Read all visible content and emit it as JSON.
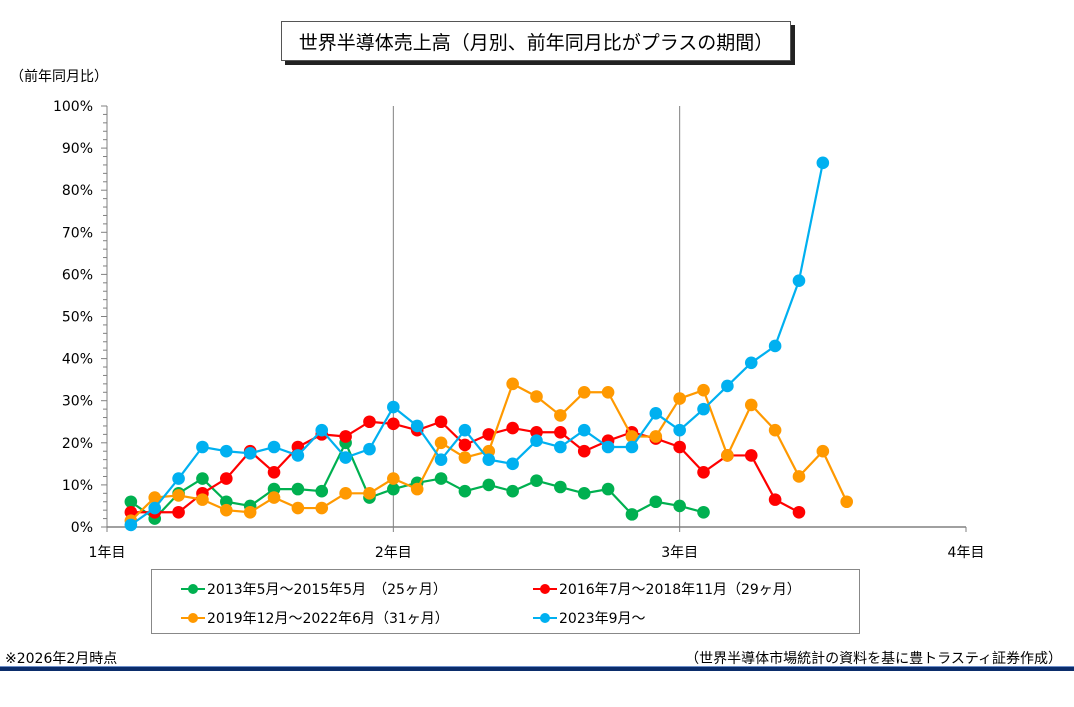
{
  "chart_data": {
    "type": "line",
    "title": "世界半導体売上高（月別、前年同月比がプラスの期間）",
    "ylabel": "（前年同月比）",
    "xlabel": "",
    "ylim": [
      0,
      100
    ],
    "y_ticks": [
      "0%",
      "10%",
      "20%",
      "30%",
      "40%",
      "50%",
      "60%",
      "70%",
      "80%",
      "90%",
      "100%"
    ],
    "x_ticks": [
      "1年目",
      "2年目",
      "3年目",
      "4年目"
    ],
    "x_unit": "months since start (12 months per year tick)",
    "xlim_months": [
      0,
      36
    ],
    "legend_position": "bottom",
    "series": [
      {
        "name": "2013年5月～2015年5月　（25ヶ月）",
        "color": "#00b050",
        "values": [
          6,
          2,
          8,
          11.5,
          6,
          5,
          9,
          9,
          8.5,
          20,
          7,
          9,
          10.5,
          11.5,
          8.5,
          10,
          8.5,
          11,
          9.5,
          8,
          9,
          3,
          6,
          5,
          3.5
        ]
      },
      {
        "name": "2016年7月～2018年11月（29ヶ月）",
        "color": "#ff0000",
        "values": [
          3.5,
          3.5,
          3.5,
          8,
          11.5,
          18,
          13,
          19,
          22,
          21.5,
          25,
          24.5,
          23,
          25,
          19.5,
          22,
          23.5,
          22.5,
          22.5,
          18,
          20.5,
          22.5,
          21,
          19,
          13,
          17,
          17,
          6.5,
          3.5
        ]
      },
      {
        "name": "2019年12月～2022年6月（31ヶ月）",
        "color": "#ff9900",
        "values": [
          1.5,
          7,
          7.5,
          6.5,
          4,
          3.5,
          7,
          4.5,
          4.5,
          8,
          8,
          11.5,
          9,
          20,
          16.5,
          18,
          34,
          31,
          26.5,
          32,
          32,
          21.5,
          21.5,
          30.5,
          32.5,
          17,
          29,
          23,
          12,
          18,
          6
        ]
      },
      {
        "name": "2023年9月～",
        "color": "#00b0f0",
        "values": [
          0.5,
          4.5,
          11.5,
          19,
          18,
          17.5,
          19,
          17,
          23,
          16.5,
          18.5,
          28.5,
          24,
          16,
          23,
          16,
          15,
          20.5,
          19,
          23,
          19,
          19,
          27,
          23,
          28,
          33.5,
          39,
          43,
          58.5,
          86.5
        ]
      }
    ]
  },
  "notes": {
    "as_of": "※2026年2月時点",
    "source": "（世界半導体市場統計の資料を基に豊トラスティ証券作成）"
  }
}
